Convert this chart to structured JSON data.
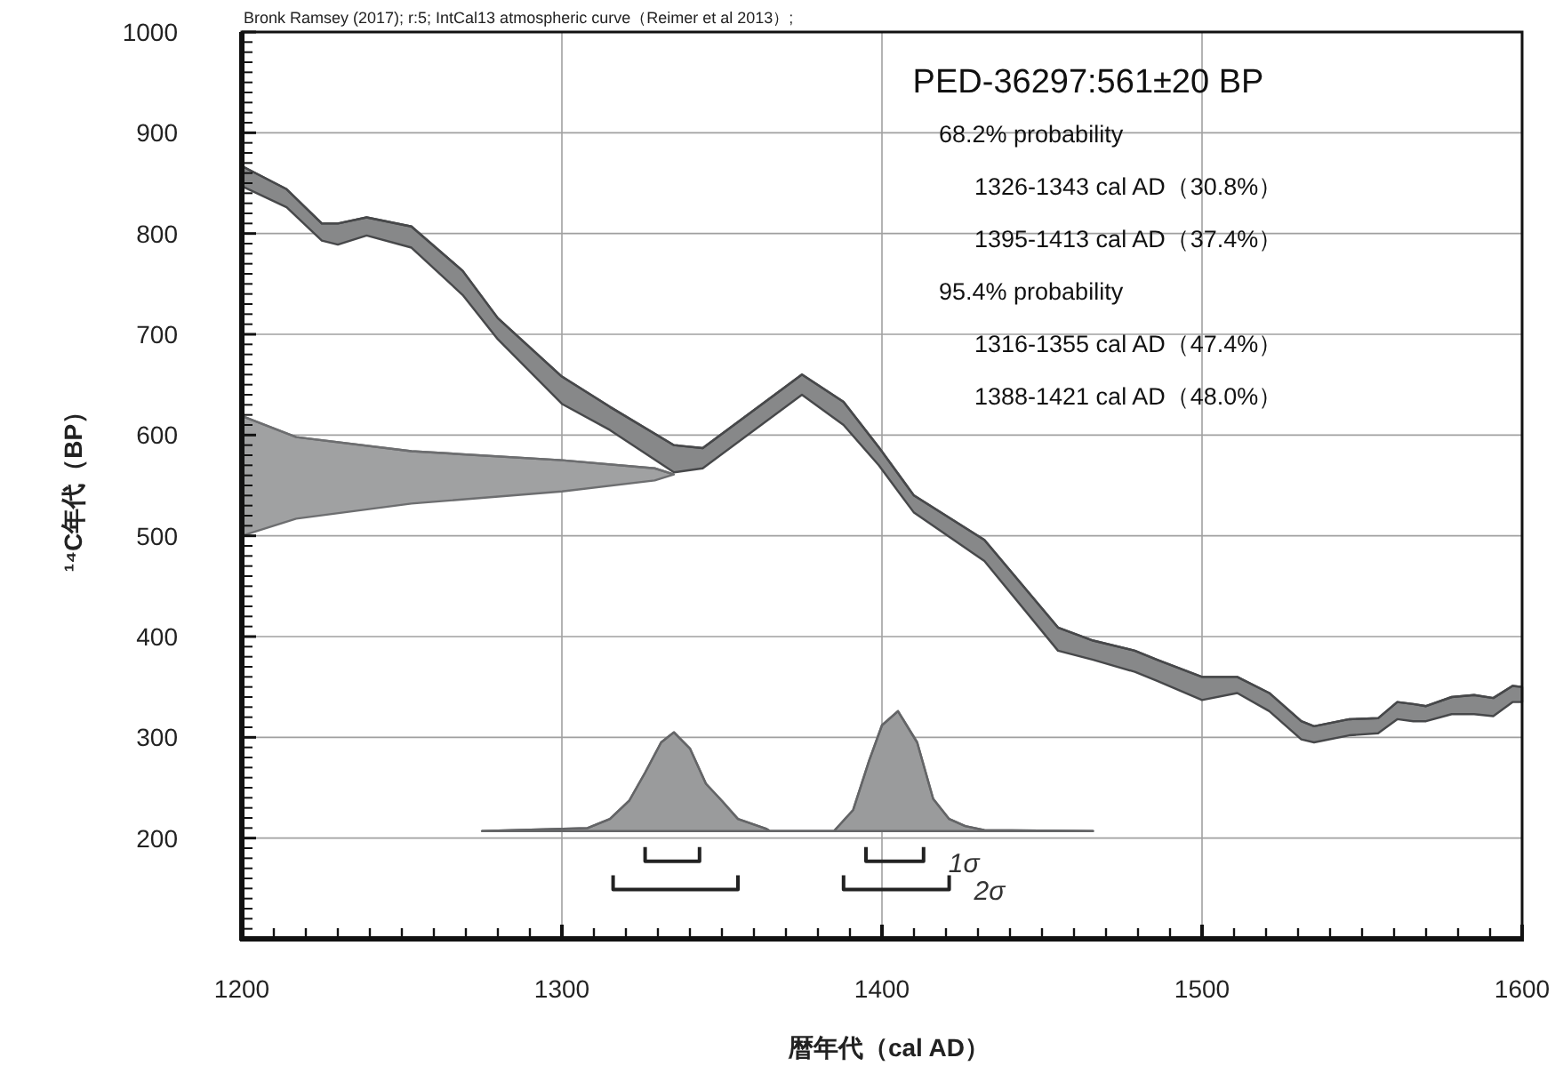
{
  "chart_data": {
    "type": "line",
    "title": "PED-36297:561±20 BP",
    "xlabel": "暦年代（cal AD）",
    "ylabel": "¹⁴C年代（BP）",
    "annotations": [
      "Bronk Ramsey (2017); r:5; IntCal13 atmospheric curve（Reimer et al 2013）;",
      "68.2% probability",
      "1326-1343 cal AD（30.8%）",
      "1395-1413 cal AD（37.4%）",
      "95.4% probability",
      "1316-1355 cal AD（47.4%）",
      "1388-1421 cal AD（48.0%）"
    ],
    "xlim": [
      1200,
      1600
    ],
    "ylim": [
      100,
      1000
    ],
    "xticks": [
      1200,
      {
        "value": 1210,
        "label": null
      },
      {
        "value": 1220,
        "label": null
      },
      {
        "value": 1230,
        "label": null
      },
      {
        "value": 1240,
        "label": null
      },
      {
        "value": 1250,
        "label": null
      },
      {
        "value": 1260,
        "label": null
      },
      {
        "value": 1270,
        "label": null
      },
      {
        "value": 1280,
        "label": null
      },
      {
        "value": 1290,
        "label": null
      },
      1300,
      {
        "value": 1310,
        "label": null
      },
      {
        "value": 1320,
        "label": null
      },
      {
        "value": 1330,
        "label": null
      },
      {
        "value": 1340,
        "label": null
      },
      {
        "value": 1350,
        "label": null
      },
      {
        "value": 1360,
        "label": null
      },
      {
        "value": 1370,
        "label": null
      },
      {
        "value": 1380,
        "label": null
      },
      {
        "value": 1390,
        "label": null
      },
      1400,
      {
        "value": 1410,
        "label": null
      },
      {
        "value": 1420,
        "label": null
      },
      {
        "value": 1430,
        "label": null
      },
      {
        "value": 1440,
        "label": null
      },
      {
        "value": 1450,
        "label": null
      },
      {
        "value": 1460,
        "label": null
      },
      {
        "value": 1470,
        "label": null
      },
      {
        "value": 1480,
        "label": null
      },
      {
        "value": 1490,
        "label": null
      },
      1500,
      {
        "value": 1510,
        "label": null
      },
      {
        "value": 1520,
        "label": null
      },
      {
        "value": 1530,
        "label": null
      },
      {
        "value": 1540,
        "label": null
      },
      {
        "value": 1550,
        "label": null
      },
      {
        "value": 1560,
        "label": null
      },
      {
        "value": 1570,
        "label": null
      },
      {
        "value": 1580,
        "label": null
      },
      {
        "value": 1590,
        "label": null
      },
      1600
    ],
    "yticks": [
      {
        "value": 110,
        "label": null
      },
      {
        "value": 120,
        "label": null
      },
      {
        "value": 130,
        "label": null
      },
      {
        "value": 140,
        "label": null
      },
      {
        "value": 150,
        "label": null
      },
      {
        "value": 160,
        "label": null
      },
      {
        "value": 170,
        "label": null
      },
      {
        "value": 180,
        "label": null
      },
      {
        "value": 190,
        "label": null
      },
      200,
      {
        "value": 210,
        "label": null
      },
      {
        "value": 220,
        "label": null
      },
      {
        "value": 230,
        "label": null
      },
      {
        "value": 240,
        "label": null
      },
      {
        "value": 250,
        "label": null
      },
      {
        "value": 260,
        "label": null
      },
      {
        "value": 270,
        "label": null
      },
      {
        "value": 280,
        "label": null
      },
      {
        "value": 290,
        "label": null
      },
      300,
      {
        "value": 310,
        "label": null
      },
      {
        "value": 320,
        "label": null
      },
      {
        "value": 330,
        "label": null
      },
      {
        "value": 340,
        "label": null
      },
      {
        "value": 350,
        "label": null
      },
      {
        "value": 360,
        "label": null
      },
      {
        "value": 370,
        "label": null
      },
      {
        "value": 380,
        "label": null
      },
      {
        "value": 390,
        "label": null
      },
      400,
      {
        "value": 410,
        "label": null
      },
      {
        "value": 420,
        "label": null
      },
      {
        "value": 430,
        "label": null
      },
      {
        "value": 440,
        "label": null
      },
      {
        "value": 450,
        "label": null
      },
      {
        "value": 460,
        "label": null
      },
      {
        "value": 470,
        "label": null
      },
      {
        "value": 480,
        "label": null
      },
      {
        "value": 490,
        "label": null
      },
      500,
      {
        "value": 510,
        "label": null
      },
      {
        "value": 520,
        "label": null
      },
      {
        "value": 530,
        "label": null
      },
      {
        "value": 540,
        "label": null
      },
      {
        "value": 550,
        "label": null
      },
      {
        "value": 560,
        "label": null
      },
      {
        "value": 570,
        "label": null
      },
      {
        "value": 580,
        "label": null
      },
      {
        "value": 590,
        "label": null
      },
      600,
      {
        "value": 610,
        "label": null
      },
      {
        "value": 620,
        "label": null
      },
      {
        "value": 630,
        "label": null
      },
      {
        "value": 640,
        "label": null
      },
      {
        "value": 650,
        "label": null
      },
      {
        "value": 660,
        "label": null
      },
      {
        "value": 670,
        "label": null
      },
      {
        "value": 680,
        "label": null
      },
      {
        "value": 690,
        "label": null
      },
      700,
      {
        "value": 710,
        "label": null
      },
      {
        "value": 720,
        "label": null
      },
      {
        "value": 730,
        "label": null
      },
      {
        "value": 740,
        "label": null
      },
      {
        "value": 750,
        "label": null
      },
      {
        "value": 760,
        "label": null
      },
      {
        "value": 770,
        "label": null
      },
      {
        "value": 780,
        "label": null
      },
      {
        "value": 790,
        "label": null
      },
      800,
      {
        "value": 810,
        "label": null
      },
      {
        "value": 820,
        "label": null
      },
      {
        "value": 830,
        "label": null
      },
      {
        "value": 840,
        "label": null
      },
      {
        "value": 850,
        "label": null
      },
      {
        "value": 860,
        "label": null
      },
      {
        "value": 870,
        "label": null
      },
      {
        "value": 880,
        "label": null
      },
      {
        "value": 890,
        "label": null
      },
      900,
      {
        "value": 910,
        "label": null
      },
      {
        "value": 920,
        "label": null
      },
      {
        "value": 930,
        "label": null
      },
      {
        "value": 940,
        "label": null
      },
      {
        "value": 950,
        "label": null
      },
      {
        "value": 960,
        "label": null
      },
      {
        "value": 970,
        "label": null
      },
      {
        "value": 980,
        "label": null
      },
      {
        "value": 990,
        "label": null
      },
      1000
    ],
    "grid": true,
    "series": [
      {
        "color": "#47484a",
        "x": [
          1200,
          1214,
          1225,
          1230,
          1239,
          1253,
          1269,
          1280,
          1300,
          1315,
          1335,
          1344,
          1375,
          1388,
          1399,
          1410,
          1432,
          1455,
          1466,
          1479,
          1486,
          1500,
          1511,
          1521,
          1531,
          1535,
          1546,
          1555,
          1561,
          1566,
          1570,
          1578,
          1585,
          1591,
          1597,
          1600
        ],
        "values": [
          867,
          844,
          810,
          810,
          816,
          807,
          763,
          716,
          658,
          628,
          590,
          587,
          660,
          633,
          588,
          540,
          496,
          409,
          396,
          386,
          377,
          360,
          360,
          344,
          316,
          311,
          318,
          319,
          335,
          333,
          331,
          340,
          342,
          339,
          351,
          350
        ],
        "upper": [
          867,
          844,
          810,
          810,
          816,
          807,
          763,
          716,
          658,
          628,
          590,
          587,
          660,
          633,
          588,
          540,
          496,
          409,
          396,
          386,
          377,
          360,
          360,
          344,
          316,
          311,
          318,
          319,
          335,
          333,
          331,
          340,
          342,
          339,
          351,
          350
        ],
        "lower": [
          847,
          826,
          793,
          789,
          798,
          786,
          739,
          695,
          631,
          605,
          563,
          567,
          640,
          610,
          570,
          523,
          475,
          386,
          377,
          365,
          356,
          337,
          344,
          326,
          298,
          295,
          302,
          304,
          318,
          316,
          316,
          323,
          323,
          321,
          335,
          335
        ]
      },
      {
        "color": "#6d6e70",
        "x": [
          1200,
          1217,
          1253,
          1300,
          1329,
          1335
        ],
        "values": [
          619,
          598,
          584,
          575,
          567,
          561
        ],
        "upper": [
          619,
          598,
          584,
          575,
          567,
          561
        ],
        "lower": [
          500,
          517,
          532,
          544,
          555,
          561
        ]
      },
      {
        "color": "#646567",
        "x": [
          1275,
          1308,
          1315,
          1321,
          1326,
          1331,
          1335,
          1340,
          1345,
          1350,
          1355,
          1364,
          1365,
          1385,
          1391,
          1396,
          1400,
          1405,
          1411,
          1416,
          1421,
          1426,
          1432,
          1466
        ],
        "values": [
          207,
          210,
          219,
          237,
          265,
          295,
          305,
          289,
          254,
          237,
          219,
          209,
          207,
          207,
          228,
          277,
          312,
          326,
          295,
          239,
          219,
          212,
          208,
          207
        ],
        "upper": [
          207,
          210,
          219,
          237,
          265,
          295,
          305,
          289,
          254,
          237,
          219,
          209,
          207,
          207,
          228,
          277,
          312,
          326,
          295,
          239,
          219,
          212,
          208,
          207
        ],
        "lower": [
          207,
          207,
          207,
          207,
          207,
          207,
          207,
          207,
          207,
          207,
          207,
          207,
          207,
          207,
          207,
          207,
          207,
          207,
          207,
          207,
          207,
          207,
          207,
          207
        ]
      },
      {
        "name": "1σ",
        "color": "#222222",
        "x": [
          1326,
          1326,
          1343,
          1343,
          null,
          1395,
          1395,
          1413,
          1413
        ],
        "values": [
          191,
          177,
          177,
          191,
          null,
          191,
          177,
          177,
          191
        ]
      },
      {
        "name": "2σ",
        "color": "#222222",
        "x": [
          1316,
          1316,
          1355,
          1355,
          null,
          1388,
          1388,
          1421,
          1421
        ],
        "values": [
          163,
          149,
          149,
          163,
          null,
          163,
          149,
          149,
          163
        ]
      }
    ]
  }
}
